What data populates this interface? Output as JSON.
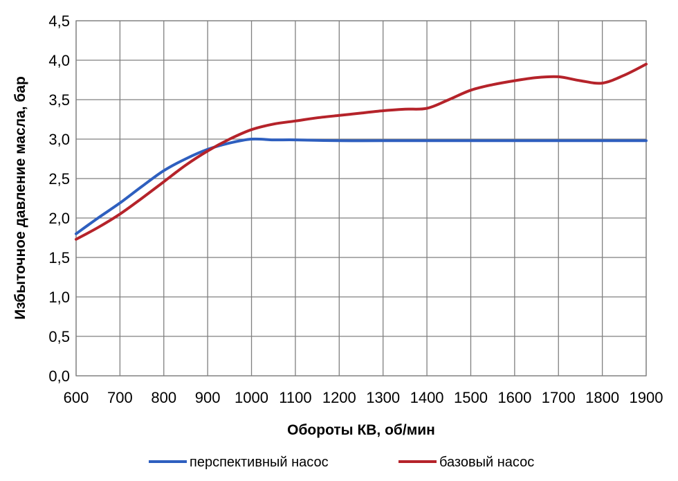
{
  "chart_data": {
    "type": "line",
    "xlabel": "Обороты КВ, об/мин",
    "ylabel": "Избыточное давление масла, бар",
    "xlim": [
      600,
      1900
    ],
    "ylim": [
      0,
      4.5
    ],
    "x_ticks": [
      "600",
      "700",
      "800",
      "900",
      "1000",
      "1100",
      "1200",
      "1300",
      "1400",
      "1500",
      "1600",
      "1700",
      "1800",
      "1900"
    ],
    "y_ticks": [
      "0,0",
      "0,5",
      "1,0",
      "1,5",
      "2,0",
      "2,5",
      "3,0",
      "3,5",
      "4,0",
      "4,5"
    ],
    "grid": true,
    "legend_position": "bottom",
    "series": [
      {
        "name": "перспективный  насос",
        "color": "#2e5fbf",
        "x": [
          600,
          650,
          700,
          750,
          800,
          850,
          900,
          950,
          1000,
          1050,
          1100,
          1200,
          1300,
          1400,
          1500,
          1600,
          1700,
          1800,
          1900
        ],
        "y": [
          1.8,
          2.0,
          2.19,
          2.4,
          2.6,
          2.75,
          2.87,
          2.95,
          3.0,
          2.99,
          2.99,
          2.98,
          2.98,
          2.98,
          2.98,
          2.98,
          2.98,
          2.98,
          2.98
        ]
      },
      {
        "name": "базовый насос",
        "color": "#b5232a",
        "x": [
          600,
          650,
          700,
          750,
          800,
          850,
          900,
          950,
          1000,
          1050,
          1100,
          1150,
          1200,
          1250,
          1300,
          1350,
          1400,
          1450,
          1500,
          1550,
          1600,
          1650,
          1700,
          1750,
          1800,
          1850,
          1900
        ],
        "y": [
          1.73,
          1.88,
          2.05,
          2.25,
          2.46,
          2.67,
          2.85,
          3.0,
          3.12,
          3.19,
          3.23,
          3.27,
          3.3,
          3.33,
          3.36,
          3.38,
          3.39,
          3.5,
          3.62,
          3.69,
          3.74,
          3.78,
          3.79,
          3.74,
          3.71,
          3.81,
          3.95
        ]
      }
    ]
  }
}
